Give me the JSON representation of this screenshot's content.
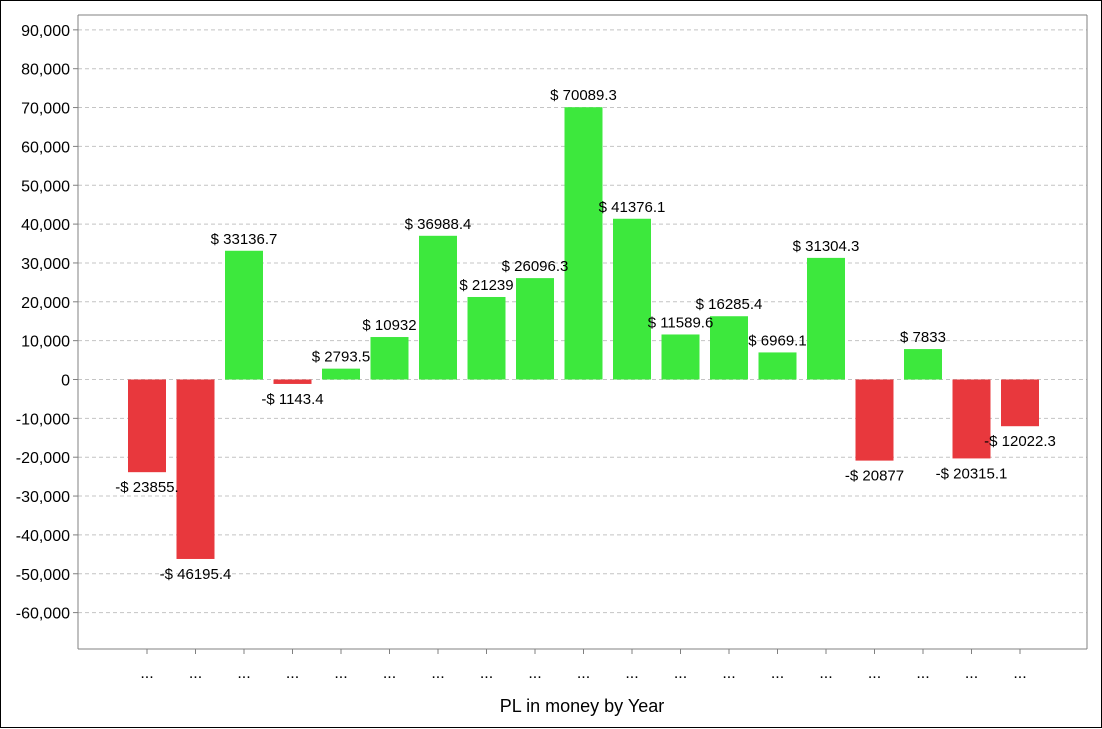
{
  "chart_data": {
    "type": "bar",
    "title": "",
    "xlabel": "PL in money by Year",
    "ylabel": "",
    "ylim": [
      -70000,
      93000
    ],
    "yticks": [
      90000,
      80000,
      70000,
      60000,
      50000,
      40000,
      30000,
      20000,
      10000,
      0,
      -10000,
      -20000,
      -30000,
      -40000,
      -50000,
      -60000
    ],
    "ytick_labels": [
      "90,000",
      "80,000",
      "70,000",
      "60,000",
      "50,000",
      "40,000",
      "30,000",
      "20,000",
      "10,000",
      "0",
      "-10,000",
      "-20,000",
      "-30,000",
      "-40,000",
      "-50,000",
      "-60,000"
    ],
    "grid": "horizontal dashed",
    "legend": "none",
    "categories": [
      "...",
      "...",
      "...",
      "...",
      "...",
      "...",
      "...",
      "...",
      "...",
      "...",
      "...",
      "...",
      "...",
      "...",
      "...",
      "...",
      "...",
      "...",
      "..."
    ],
    "values": [
      -23855,
      -46195.4,
      33136.7,
      -1143.4,
      2793.5,
      10932,
      36988.4,
      21239,
      26096.3,
      70089.3,
      41376.1,
      11589.6,
      16285.4,
      6969.1,
      31304.3,
      -20877,
      7833,
      -20315.1,
      -12022.3
    ],
    "data_labels": [
      "-$ 23855.",
      "-$ 46195.4",
      "$ 33136.7",
      "-$ 1143.4",
      "$ 2793.5",
      "$ 10932",
      "$ 36988.4",
      "$ 21239",
      "$ 26096.3",
      "$ 70089.3",
      "$ 41376.1",
      "$ 11589.6",
      "$ 16285.4",
      "$ 6969.1",
      "$ 31304.3",
      "-$ 20877",
      "$ 7833",
      "-$ 20315.1",
      "-$ 12022.3"
    ],
    "colors": {
      "positive": "#3de83d",
      "negative": "#e8383d"
    }
  }
}
